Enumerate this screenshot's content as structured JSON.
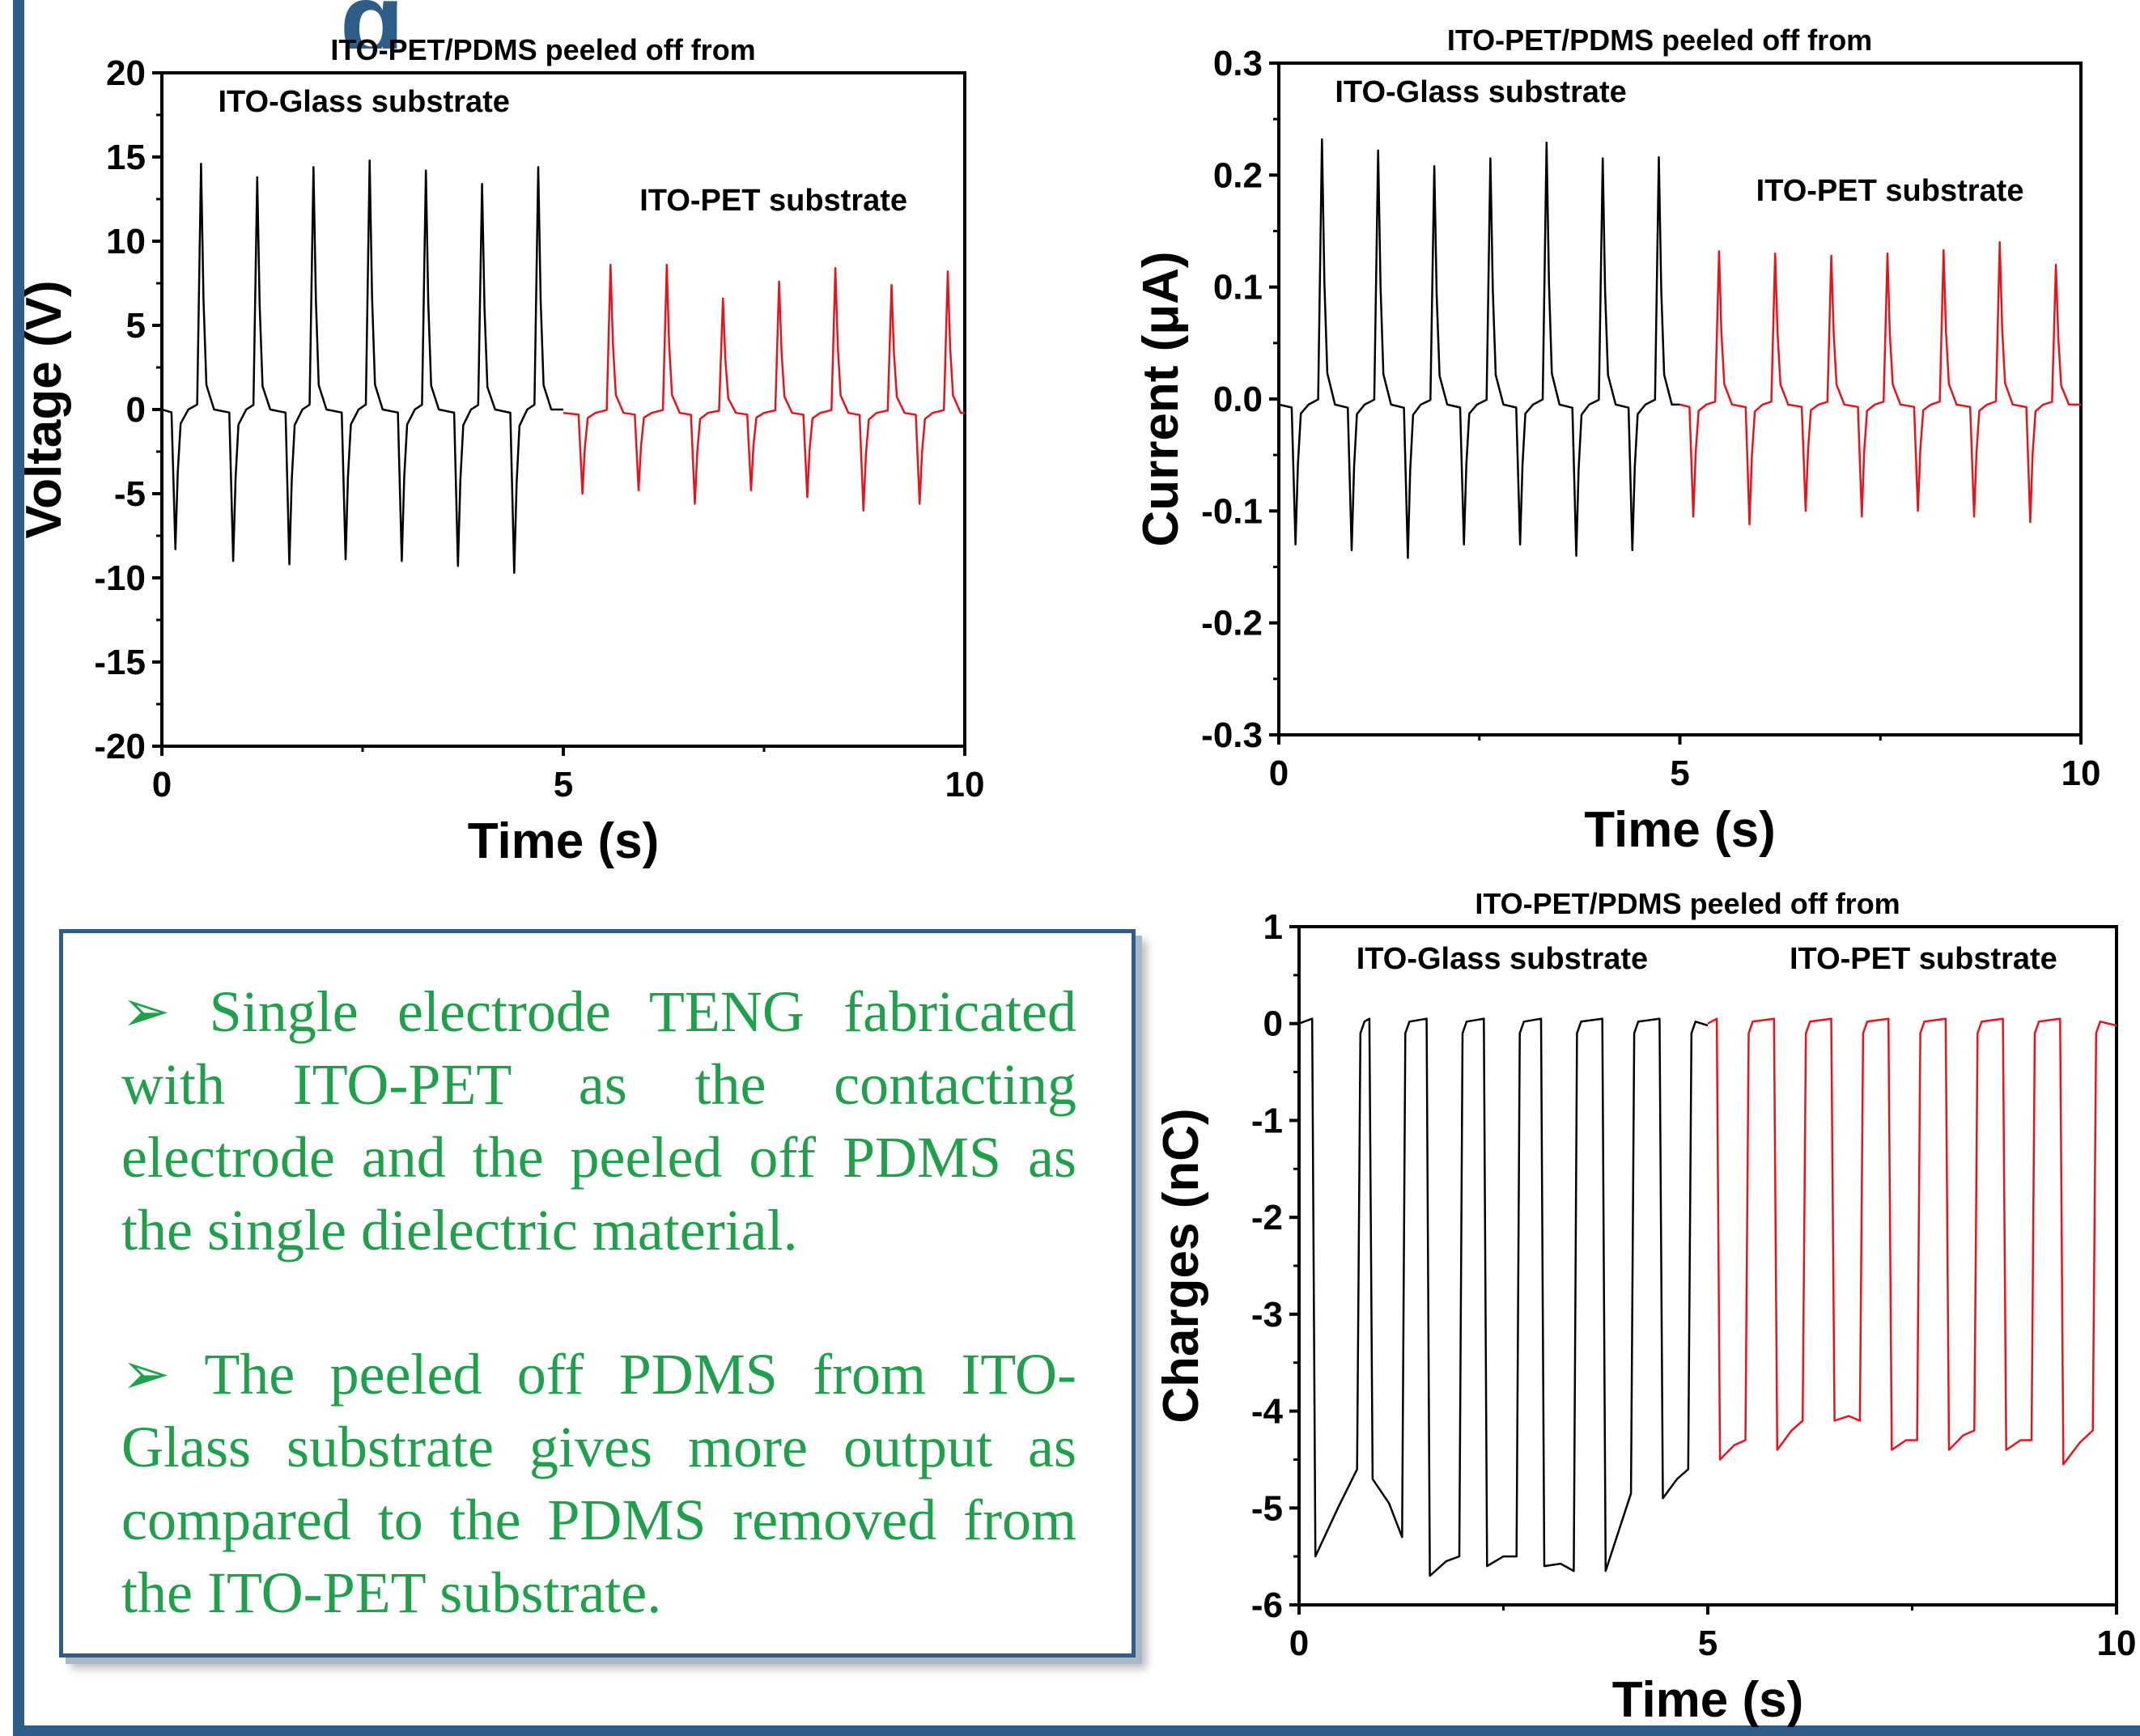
{
  "colors": {
    "frame": "#2f5d8a",
    "glass_series": "#000000",
    "pet_series": "#e8141b",
    "text_green": "#1fa04a"
  },
  "chart_data": [
    {
      "type": "line",
      "title": "ITO-PET/PDMS peeled off from",
      "xlabel": "Time (s)",
      "ylabel": "Voltage (V)",
      "xlim": [
        0,
        10
      ],
      "ylim": [
        -20,
        20
      ],
      "x_ticks": [
        "0",
        "5",
        "10"
      ],
      "y_ticks": [
        "20",
        "15",
        "10",
        "5",
        "0",
        "-5",
        "-10",
        "-15",
        "-20"
      ],
      "annotations": [
        "ITO-Glass substrate",
        "ITO-PET substrate"
      ],
      "series": [
        {
          "color": "#000000",
          "x_range": [
            0,
            5
          ],
          "baseline": 0,
          "positive_peaks": [
            [
              0.5,
              14.6
            ],
            [
              1.2,
              13.8
            ],
            [
              1.9,
              14.4
            ],
            [
              2.6,
              14.8
            ],
            [
              3.3,
              14.2
            ],
            [
              4.0,
              13.4
            ],
            [
              4.7,
              14.4
            ]
          ],
          "negative_peaks": [
            [
              0.18,
              -8.3
            ],
            [
              0.9,
              -9.0
            ],
            [
              1.6,
              -9.2
            ],
            [
              2.3,
              -8.9
            ],
            [
              3.0,
              -9.0
            ],
            [
              3.7,
              -9.3
            ],
            [
              4.4,
              -9.7
            ]
          ]
        },
        {
          "color": "#e8141b",
          "x_range": [
            5,
            10
          ],
          "baseline": -0.2,
          "positive_peaks": [
            [
              5.6,
              8.6
            ],
            [
              6.3,
              8.6
            ],
            [
              7.0,
              6.6
            ],
            [
              7.7,
              7.6
            ],
            [
              8.4,
              8.4
            ],
            [
              9.1,
              7.4
            ],
            [
              9.8,
              8.2
            ]
          ],
          "negative_peaks": [
            [
              5.25,
              -5.0
            ],
            [
              5.95,
              -4.8
            ],
            [
              6.65,
              -5.6
            ],
            [
              7.35,
              -4.8
            ],
            [
              8.05,
              -5.2
            ],
            [
              8.75,
              -6.0
            ],
            [
              9.45,
              -5.6
            ]
          ]
        }
      ]
    },
    {
      "type": "line",
      "title": "ITO-PET/PDMS peeled off from",
      "xlabel": "Time (s)",
      "ylabel": "Current (μA)",
      "xlim": [
        0,
        10
      ],
      "ylim": [
        -0.3,
        0.3
      ],
      "x_ticks": [
        "0",
        "5",
        "10"
      ],
      "y_ticks": [
        "0.3",
        "0.2",
        "0.1",
        "0.0",
        "-0.1",
        "-0.2",
        "-0.3"
      ],
      "annotations": [
        "ITO-Glass substrate",
        "ITO-PET substrate"
      ],
      "series": [
        {
          "color": "#000000",
          "x_range": [
            0,
            5
          ],
          "baseline": -0.005,
          "positive_peaks": [
            [
              0.55,
              0.232
            ],
            [
              1.25,
              0.222
            ],
            [
              1.95,
              0.208
            ],
            [
              2.65,
              0.215
            ],
            [
              3.35,
              0.229
            ],
            [
              4.05,
              0.215
            ],
            [
              4.75,
              0.216
            ]
          ],
          "negative_peaks": [
            [
              0.22,
              -0.13
            ],
            [
              0.92,
              -0.135
            ],
            [
              1.62,
              -0.142
            ],
            [
              2.32,
              -0.13
            ],
            [
              3.02,
              -0.13
            ],
            [
              3.72,
              -0.14
            ],
            [
              4.42,
              -0.135
            ]
          ]
        },
        {
          "color": "#e8141b",
          "x_range": [
            5,
            10
          ],
          "baseline": -0.005,
          "positive_peaks": [
            [
              5.5,
              0.132
            ],
            [
              6.2,
              0.13
            ],
            [
              6.9,
              0.128
            ],
            [
              7.6,
              0.13
            ],
            [
              8.3,
              0.133
            ],
            [
              9.0,
              0.14
            ],
            [
              9.7,
              0.12
            ]
          ],
          "negative_peaks": [
            [
              5.18,
              -0.105
            ],
            [
              5.88,
              -0.112
            ],
            [
              6.58,
              -0.1
            ],
            [
              7.28,
              -0.105
            ],
            [
              7.98,
              -0.1
            ],
            [
              8.68,
              -0.105
            ],
            [
              9.38,
              -0.11
            ]
          ]
        }
      ]
    },
    {
      "type": "line",
      "title": "ITO-PET/PDMS peeled off from",
      "xlabel": "Time (s)",
      "ylabel": "Charges (nC)",
      "xlim": [
        0,
        10
      ],
      "ylim": [
        -6,
        1
      ],
      "x_ticks": [
        "0",
        "5",
        "10"
      ],
      "y_ticks": [
        "1",
        "0",
        "-1",
        "-2",
        "-3",
        "-4",
        "-5",
        "-6"
      ],
      "annotations": [
        "ITO-Glass substrate",
        "ITO-PET substrate"
      ],
      "series": [
        {
          "color": "#000000",
          "x_range": [
            0,
            5
          ],
          "high": 0.0,
          "cycles": [
            [
              0.2,
              0.75,
              -5.5,
              -4.6
            ],
            [
              0.9,
              1.3,
              -4.7,
              -5.3
            ],
            [
              1.6,
              2.0,
              -5.7,
              -5.5
            ],
            [
              2.3,
              2.7,
              -5.6,
              -5.5
            ],
            [
              3.0,
              3.4,
              -5.6,
              -5.65
            ],
            [
              3.75,
              4.1,
              -5.65,
              -4.85
            ],
            [
              4.45,
              4.8,
              -4.9,
              -4.6
            ]
          ]
        },
        {
          "color": "#e8141b",
          "x_range": [
            5,
            10
          ],
          "high": 0.0,
          "cycles": [
            [
              5.15,
              5.5,
              -4.5,
              -4.3
            ],
            [
              5.85,
              6.2,
              -4.4,
              -4.1
            ],
            [
              6.55,
              6.9,
              -4.1,
              -4.1
            ],
            [
              7.25,
              7.6,
              -4.4,
              -4.3
            ],
            [
              7.95,
              8.3,
              -4.4,
              -4.2
            ],
            [
              8.65,
              9.0,
              -4.4,
              -4.3
            ],
            [
              9.35,
              9.75,
              -4.55,
              -4.2
            ]
          ]
        }
      ]
    }
  ],
  "notes": {
    "bullet1": "➢ Single electrode TENG fabricated with ITO-PET as the contacting electrode and the peeled off PDMS as the single dielectric material.",
    "bullet2": "➢ The peeled off PDMS from ITO-Glass substrate gives more output as compared to the PDMS removed from the ITO-PET substrate."
  }
}
